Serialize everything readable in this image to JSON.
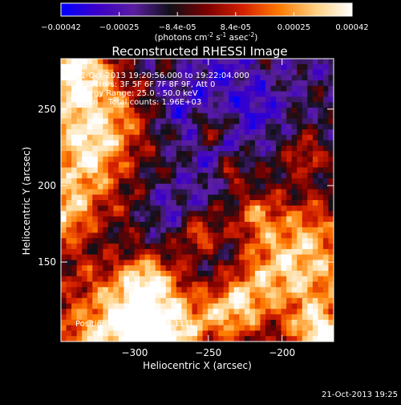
{
  "colorbar": {
    "ticks": [
      "-0.00042",
      "-0.00025",
      "-8.4e-05",
      "8.4e-05",
      "0.00025",
      "0.00042"
    ],
    "unit_main": "(photons cm",
    "unit_sup1": "-2",
    "unit_mid": " s",
    "unit_sup2": "-1",
    "unit_end": " asec",
    "unit_sup3": "-2",
    "unit_close": ")",
    "colors": [
      "#0000ff",
      "#3b00c8",
      "#5a1ea0",
      "#101018",
      "#7a0000",
      "#d52000",
      "#ff7a00",
      "#ffd080",
      "#ffffff"
    ]
  },
  "chart_data": {
    "type": "heatmap",
    "title": "Reconstructed RHESSI Image",
    "xlabel": "Heliocentric X (arcsec)",
    "ylabel": "Heliocentric Y (arcsec)",
    "xlim": [
      -350,
      -165
    ],
    "ylim": [
      98,
      283
    ],
    "x_ticks": [
      -300,
      -250,
      -200
    ],
    "y_ticks": [
      150,
      200,
      250
    ],
    "x_tick_labels": [
      "−300",
      "−250",
      "−200"
    ],
    "y_tick_labels": [
      "150",
      "200",
      "250"
    ],
    "color_range": [
      -0.00042,
      0.00042
    ],
    "annotations": [
      "21-Oct-2013 19:20:56.000 to 19:22:04.000",
      "Detectors: 3F 5F 6F 7F 8F 9F, Att 0",
      "Energy Range: 25.0 - 50.0 keV",
      "Clean    Total counts: 1.96E+03"
    ],
    "peak_label": "Position of Peak = [-245,111]",
    "peak": [
      -245,
      111
    ]
  },
  "footer": {
    "timestamp": "21-Oct-2013 19:25"
  }
}
